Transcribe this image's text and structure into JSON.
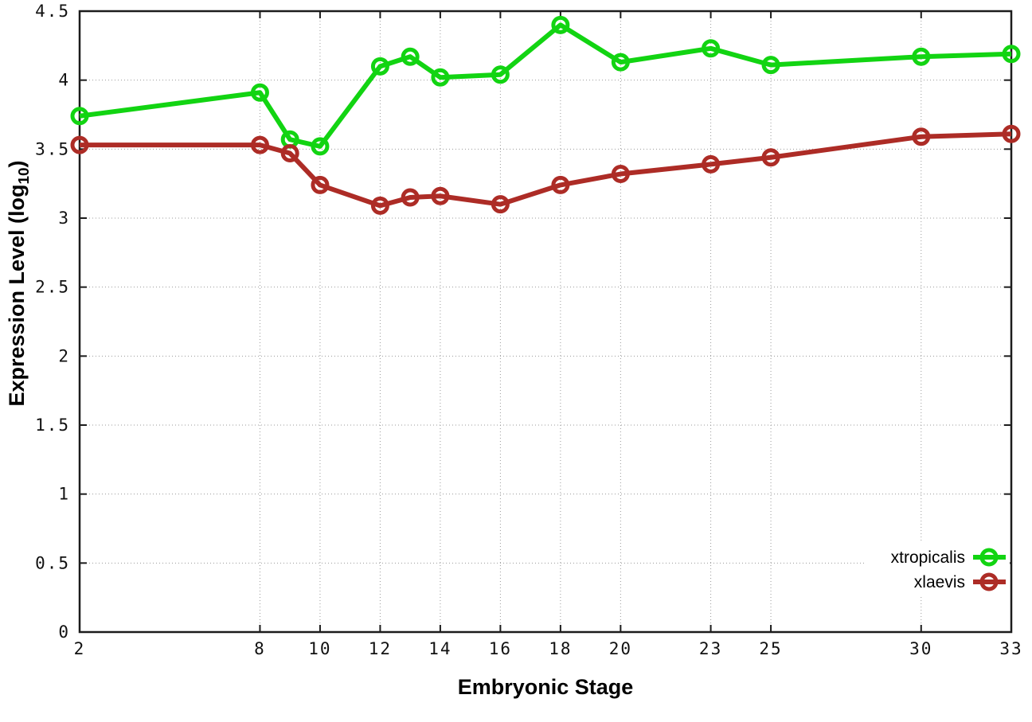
{
  "chart_data": {
    "type": "line",
    "title": "",
    "xlabel": "Embryonic Stage",
    "ylabel": "Expression Level (log10)",
    "ylabel_parts": {
      "main": "Expression Level (log",
      "sub": "10",
      "end": ")"
    },
    "xlim": [
      2,
      33
    ],
    "ylim": [
      0,
      4.5
    ],
    "grid": true,
    "legend_position": "inside-bottom-right",
    "x_ticks": [
      2,
      8,
      10,
      12,
      14,
      16,
      18,
      20,
      23,
      25,
      30,
      33
    ],
    "x_tick_labels": [
      "2",
      "8",
      "10",
      "12",
      "14",
      "16",
      "18",
      "20",
      "23",
      "25",
      "30",
      "33"
    ],
    "y_ticks": [
      0,
      0.5,
      1,
      1.5,
      2,
      2.5,
      3,
      3.5,
      4,
      4.5
    ],
    "y_tick_labels": [
      "0",
      "0.5",
      "1",
      "1.5",
      "2",
      "2.5",
      "3",
      "3.5",
      "4",
      "4.5"
    ],
    "x": [
      2,
      8,
      9,
      10,
      12,
      13,
      14,
      16,
      18,
      20,
      23,
      25,
      30,
      33
    ],
    "series": [
      {
        "name": "xtropicalis",
        "color": "#12d412",
        "marker": "open-circle",
        "values": [
          3.74,
          3.91,
          3.57,
          3.52,
          4.1,
          4.17,
          4.02,
          4.04,
          4.4,
          4.13,
          4.23,
          4.11,
          4.17,
          4.19
        ]
      },
      {
        "name": "xlaevis",
        "color": "#ad2c26",
        "marker": "open-circle",
        "values": [
          3.53,
          3.53,
          3.47,
          3.24,
          3.09,
          3.15,
          3.16,
          3.1,
          3.24,
          3.32,
          3.39,
          3.44,
          3.59,
          3.61
        ]
      }
    ],
    "colors": {
      "axis": "#1c1c1c",
      "grid": "#9a9a9a",
      "background": "#ffffff"
    }
  }
}
